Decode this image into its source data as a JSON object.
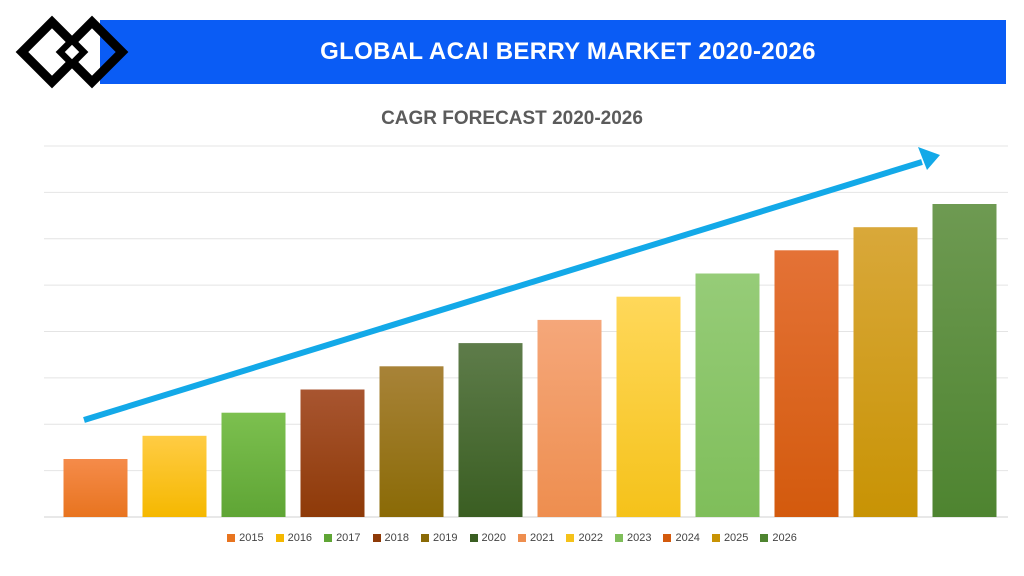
{
  "header": {
    "title": "GLOBAL ACAI BERRY MARKET 2020-2026"
  },
  "logo": {
    "icon": "interlocked-diamonds-logo",
    "color": "#000000"
  },
  "colors": {
    "banner": "#0a5cf5",
    "trend_arrow": "#13a9e8",
    "grid": "#e4e4e4"
  },
  "chart_data": {
    "type": "bar",
    "title": "CAGR FORECAST 2020-2026",
    "xlabel": "",
    "ylabel": "",
    "ylim": [
      0,
      8
    ],
    "grid": true,
    "legend": "bottom",
    "categories": [
      "2015",
      "2016",
      "2017",
      "2018",
      "2019",
      "2020",
      "2021",
      "2022",
      "2023",
      "2024",
      "2025",
      "2026"
    ],
    "values": [
      1.25,
      1.75,
      2.25,
      2.75,
      3.25,
      3.75,
      4.25,
      4.75,
      5.25,
      5.75,
      6.25,
      6.75
    ],
    "colors": [
      [
        "#f58b4a",
        "#e8741f"
      ],
      [
        "#ffcc44",
        "#f5b800"
      ],
      [
        "#7cc04f",
        "#5fa535"
      ],
      [
        "#a85530",
        "#8e3a08"
      ],
      [
        "#a88338",
        "#8a6a06"
      ],
      [
        "#5e7c4a",
        "#3a5e22"
      ],
      [
        "#f5a77a",
        "#ee8e4f"
      ],
      [
        "#ffd85a",
        "#f5c21a"
      ],
      [
        "#96cc78",
        "#7fbe5a"
      ],
      [
        "#e47236",
        "#d35a0d"
      ],
      [
        "#d9a83a",
        "#c89304"
      ],
      [
        "#6e9a52",
        "#4e8430"
      ]
    ],
    "trend": "increasing"
  }
}
